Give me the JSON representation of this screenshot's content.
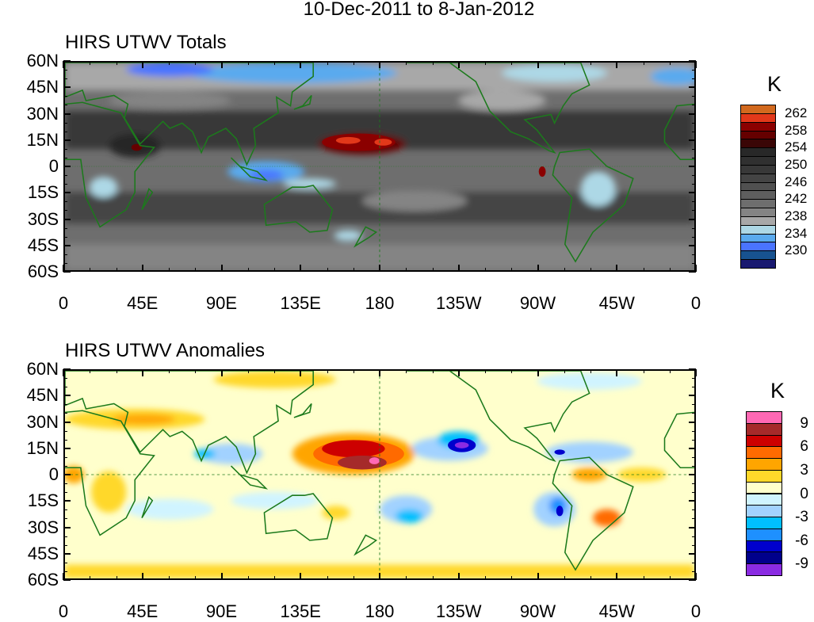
{
  "title": "10-Dec-2011 to 8-Jan-2012",
  "panels": [
    {
      "subtitle": "HIRS UTWV Totals",
      "units": "K",
      "y_ticks": [
        "60N",
        "45N",
        "30N",
        "15N",
        "0",
        "15S",
        "30S",
        "45S",
        "60S"
      ],
      "x_ticks": [
        "0",
        "45E",
        "90E",
        "135E",
        "180",
        "135W",
        "90W",
        "45W",
        "0"
      ],
      "colorbar": {
        "labels": [
          "262",
          "258",
          "254",
          "250",
          "246",
          "242",
          "238",
          "234",
          "230"
        ],
        "colors": [
          "#d2691e",
          "#e2381a",
          "#8b0000",
          "#650000",
          "#3a0606",
          "#282828",
          "#303030",
          "#383838",
          "#444444",
          "#505050",
          "#5e5e5e",
          "#6e6e6e",
          "#848484",
          "#a8a8a8",
          "#add8e6",
          "#5aaaee",
          "#4a74ff",
          "#175290",
          "#191970"
        ]
      }
    },
    {
      "subtitle": "HIRS UTWV Anomalies",
      "units": "K",
      "y_ticks": [
        "60N",
        "45N",
        "30N",
        "15N",
        "0",
        "15S",
        "30S",
        "45S",
        "60S"
      ],
      "x_ticks": [
        "0",
        "45E",
        "90E",
        "135E",
        "180",
        "135W",
        "90W",
        "45W",
        "0"
      ],
      "colorbar": {
        "labels": [
          "9",
          "6",
          "3",
          "0",
          "-3",
          "-6",
          "-9"
        ],
        "colors": [
          "#ff69b4",
          "#a52a2a",
          "#cd0000",
          "#ff6a00",
          "#ffa500",
          "#ffd82a",
          "#ffffcc",
          "#d0f4ff",
          "#a2d2ff",
          "#00bfff",
          "#1e90ff",
          "#0000cd",
          "#00008b",
          "#8a2be2"
        ]
      }
    }
  ],
  "chart_data": [
    {
      "type": "heatmap",
      "title": "HIRS UTWV Totals",
      "units": "K",
      "lon_range": [
        0,
        360
      ],
      "lat_range": [
        -60,
        60
      ],
      "levels": [
        230,
        232,
        234,
        236,
        238,
        240,
        242,
        244,
        246,
        248,
        250,
        252,
        254,
        256,
        258,
        260,
        262
      ]
    },
    {
      "type": "heatmap",
      "title": "HIRS UTWV Anomalies",
      "units": "K",
      "lon_range": [
        0,
        360
      ],
      "lat_range": [
        -60,
        60
      ],
      "levels": [
        -9,
        -7.5,
        -6,
        -4.5,
        -3,
        -1.5,
        0,
        1.5,
        3,
        4.5,
        6,
        7.5,
        9
      ]
    }
  ]
}
